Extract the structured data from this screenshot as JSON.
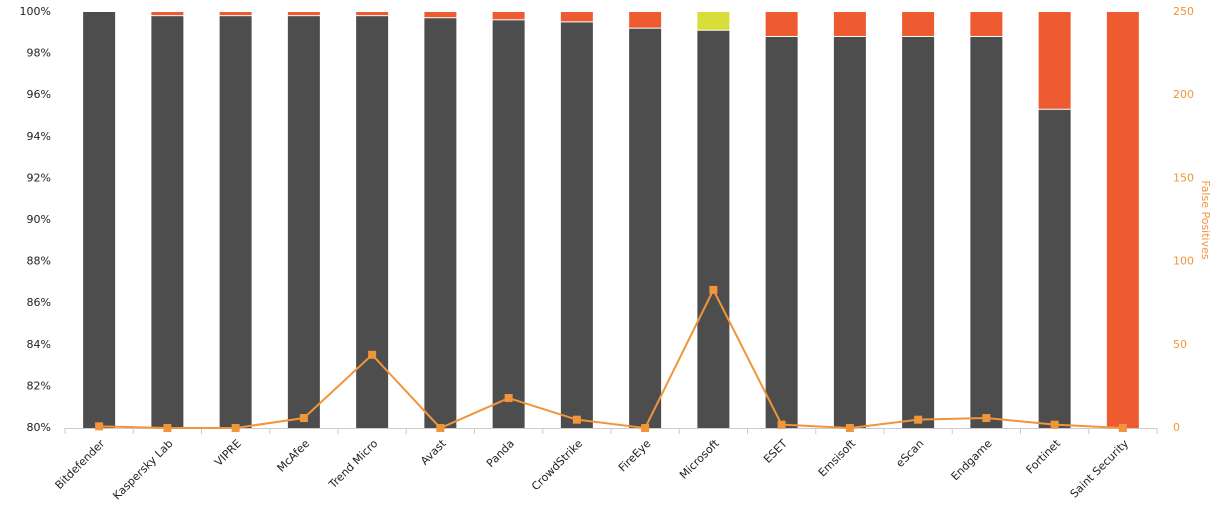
{
  "chart_data": {
    "type": "stacked_bar_line",
    "y2_label": "False Positives",
    "categories": [
      "Bitdefender",
      "Kaspersky Lab",
      "VIPRE",
      "McAfee",
      "Trend Micro",
      "Avast",
      "Panda",
      "CrowdStrike",
      "FireEye",
      "Microsoft",
      "ESET",
      "Emsisoft",
      "eScan",
      "Endgame",
      "Fortinet",
      "Saint Security"
    ],
    "series": [
      {
        "color": "#4d4d4d",
        "values": [
          100,
          99.8,
          99.8,
          99.8,
          99.8,
          99.7,
          99.6,
          99.5,
          99.2,
          99.1,
          98.8,
          98.8,
          98.8,
          98.8,
          95.3,
          0
        ]
      },
      {
        "color": "#d9dd3a",
        "values": [
          0,
          0,
          0,
          0,
          0,
          0,
          0,
          0,
          0,
          0.9,
          0,
          0,
          0,
          0,
          0,
          0
        ]
      },
      {
        "color": "#ef5b30",
        "values": [
          0,
          0.2,
          0.2,
          0.2,
          0.2,
          0.3,
          0.4,
          0.5,
          0.8,
          0,
          1.2,
          1.2,
          1.2,
          1.2,
          4.7,
          100
        ]
      },
      {
        "type": "line",
        "axis": "y2",
        "color": "#f0953a",
        "values": [
          1,
          0,
          0,
          6,
          44,
          0,
          18,
          5,
          0,
          83,
          2,
          0,
          5,
          6,
          2,
          0
        ]
      }
    ],
    "ylim": [
      80,
      100
    ],
    "yticks": [
      {
        "value": 80,
        "label": "80%"
      },
      {
        "value": 82,
        "label": "82%"
      },
      {
        "value": 84,
        "label": "84%"
      },
      {
        "value": 86,
        "label": "86%"
      },
      {
        "value": 88,
        "label": "88%"
      },
      {
        "value": 90,
        "label": "90%"
      },
      {
        "value": 92,
        "label": "92%"
      },
      {
        "value": 94,
        "label": "94%"
      },
      {
        "value": 96,
        "label": "96%"
      },
      {
        "value": 98,
        "label": "98%"
      },
      {
        "value": 100,
        "label": "100%"
      }
    ],
    "y2lim": [
      0,
      250
    ],
    "y2ticks": [
      0,
      50,
      100,
      150,
      200,
      250
    ]
  }
}
